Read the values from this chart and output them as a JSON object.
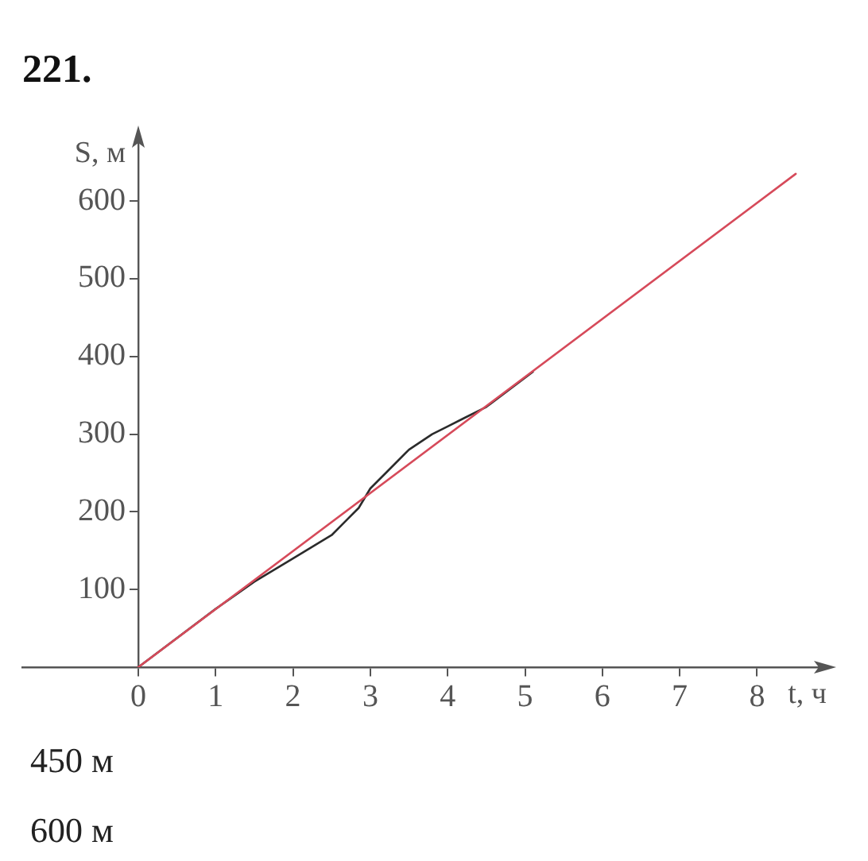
{
  "chart_data": {
    "type": "line",
    "title": "221.",
    "xlabel": "t, ч",
    "ylabel": "S, м",
    "xlim": [
      -1.5,
      8.9
    ],
    "ylim": [
      0,
      685
    ],
    "xticks": [
      0,
      1,
      2,
      3,
      4,
      5,
      6,
      7,
      8
    ],
    "yticks": [
      100,
      200,
      300,
      400,
      500,
      600
    ],
    "marker": "none",
    "series": [
      {
        "color": "#d64a5a",
        "x": [
          0,
          8.5
        ],
        "values": [
          0,
          635
        ]
      },
      {
        "color": "#2b2b2b",
        "x": [
          0,
          1,
          1.5,
          2,
          2.5,
          2.7,
          2.85,
          3,
          3.2,
          3.5,
          3.8,
          4,
          4.2,
          4.5,
          5.1
        ],
        "values": [
          0,
          75,
          110,
          140,
          170,
          190,
          205,
          230,
          250,
          280,
          300,
          310,
          320,
          335,
          380
        ]
      }
    ],
    "annotations": [
      "450 м",
      "600 м"
    ]
  }
}
